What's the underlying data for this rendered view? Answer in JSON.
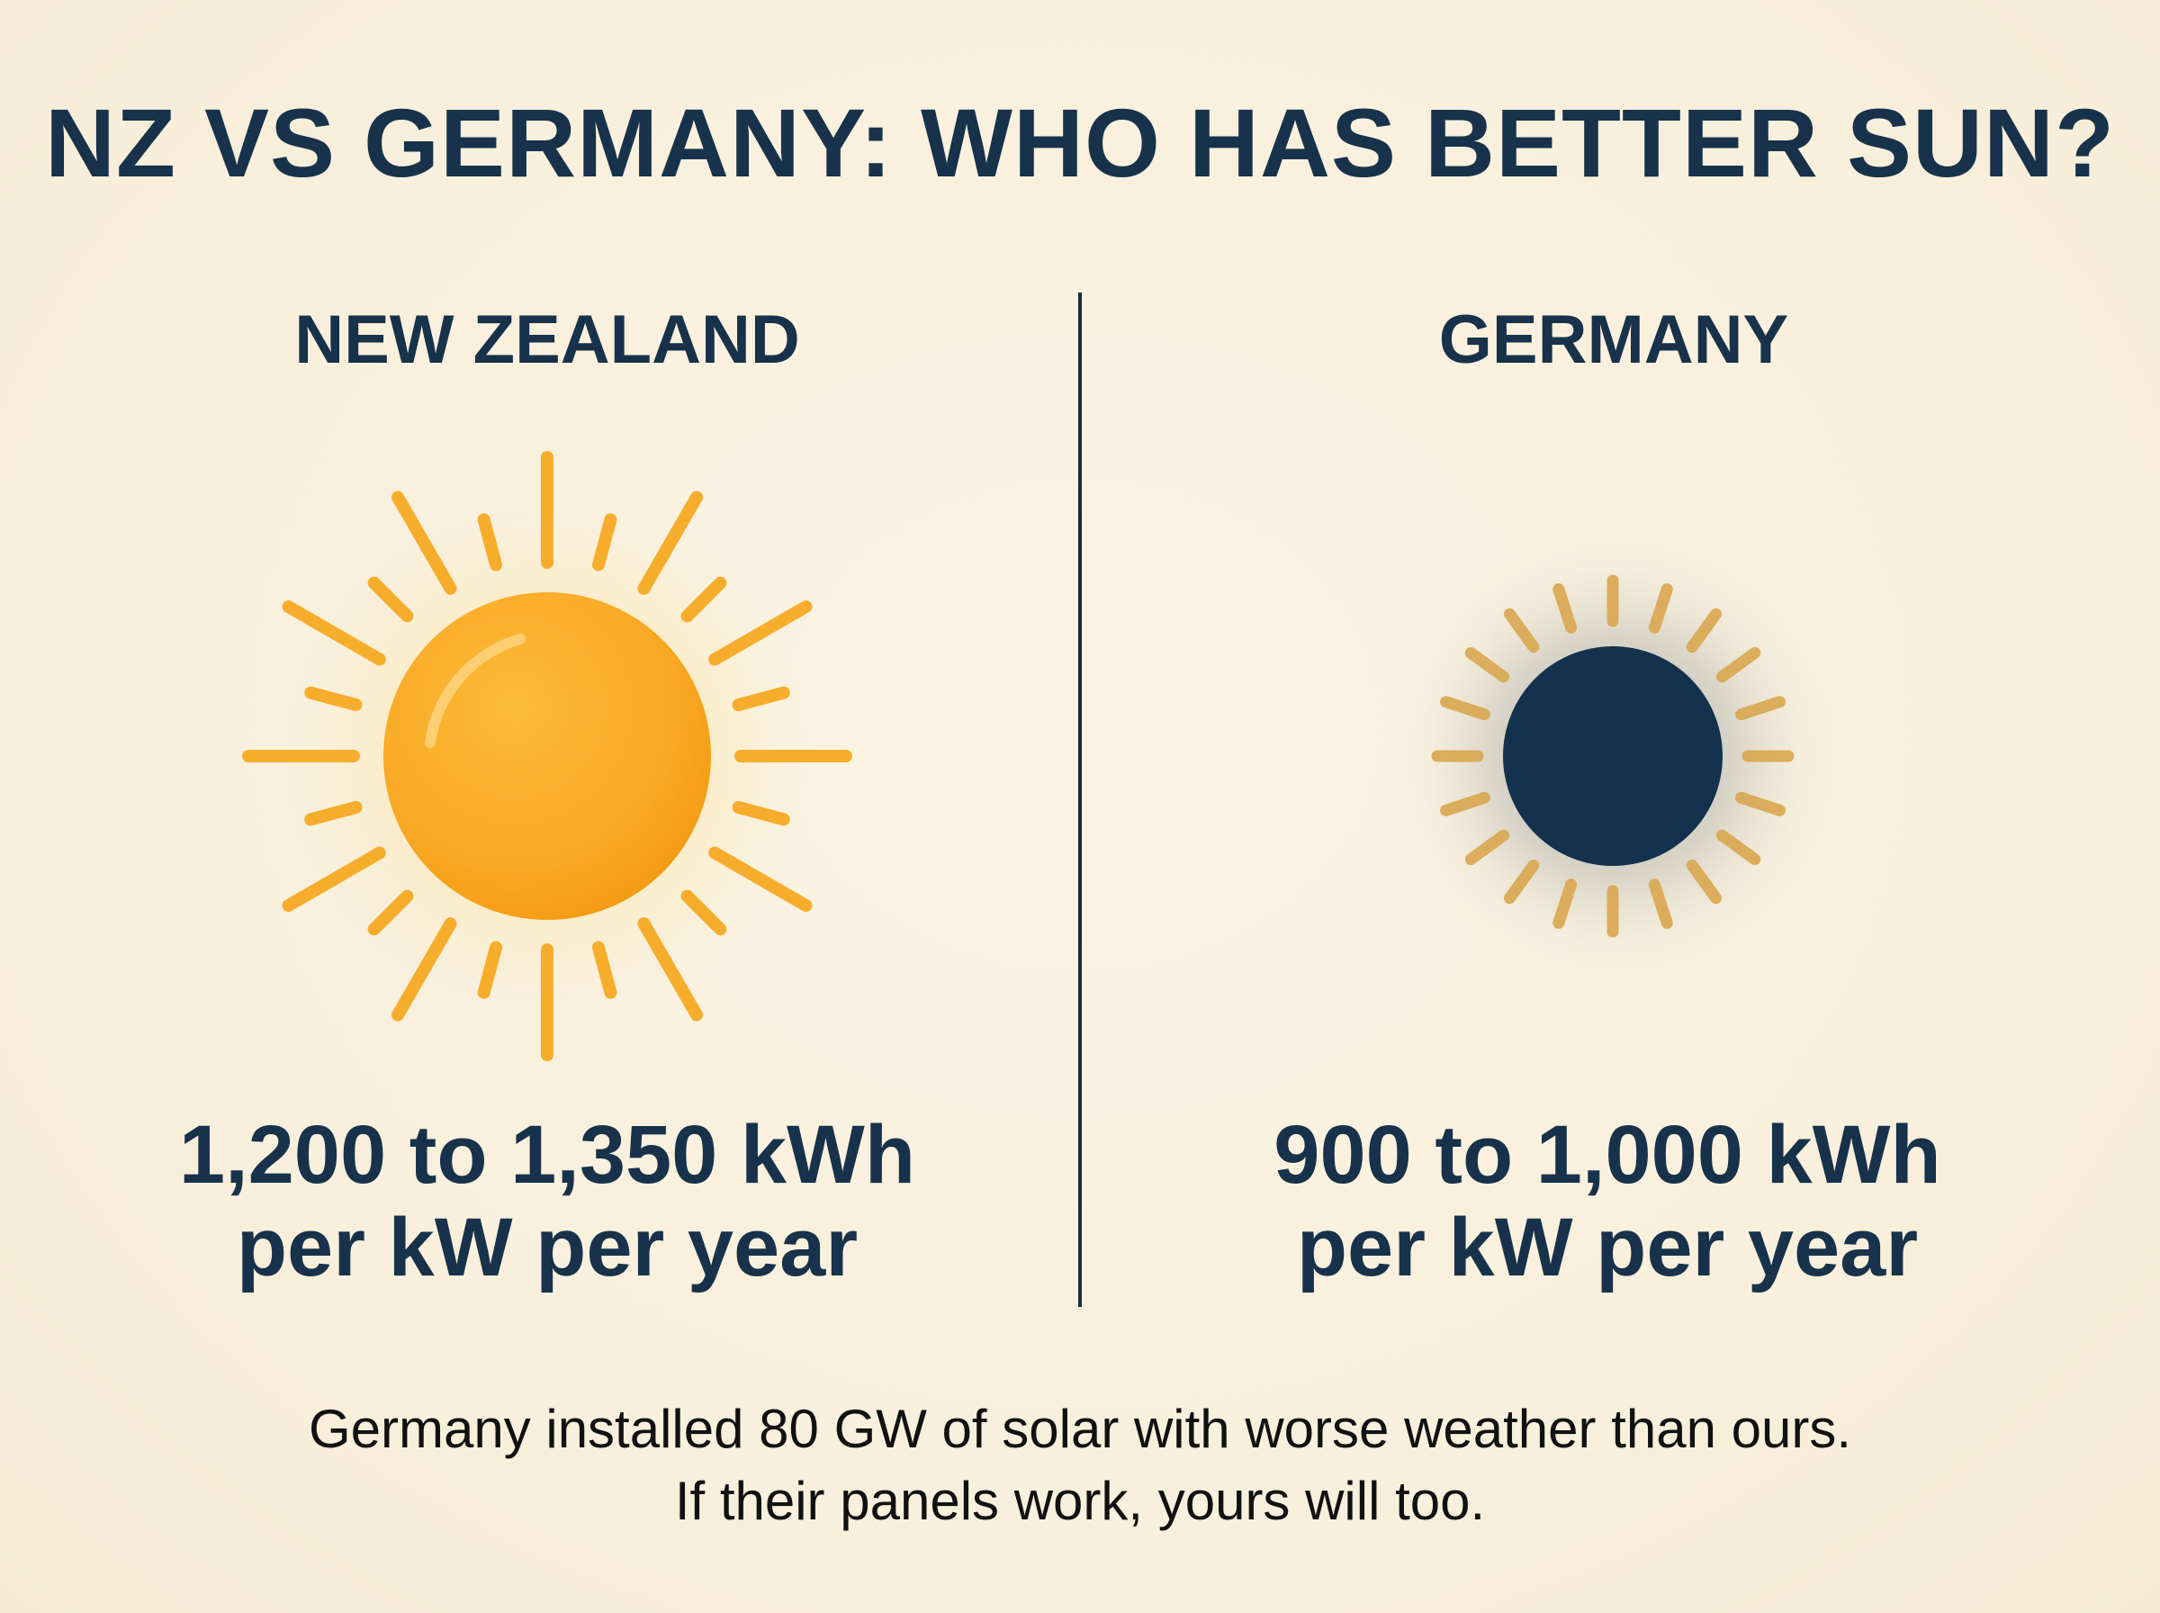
{
  "title": "NZ VS GERMANY: WHO HAS BETTER SUN?",
  "columns": {
    "nz": {
      "heading": "NEW ZEALAND",
      "icon": "bright-sun-icon",
      "stat_line1": "1,200 to 1,350 kWh",
      "stat_line2": "per kW per year"
    },
    "de": {
      "heading": "GERMANY",
      "icon": "dim-eclipsed-sun-icon",
      "stat_line1": "900 to 1,000 kWh",
      "stat_line2": "per kW per year"
    }
  },
  "footer": {
    "line1": "Germany installed 80 GW of solar with worse weather than ours.",
    "line2": "If their panels work, yours will too."
  },
  "colors": {
    "background": "#f9f1df",
    "text": "#17324a",
    "sun": "#f9a825",
    "ray": "#f7ad2c",
    "dark_sun": "#14314d",
    "dim_ray": "#d9a74f"
  }
}
